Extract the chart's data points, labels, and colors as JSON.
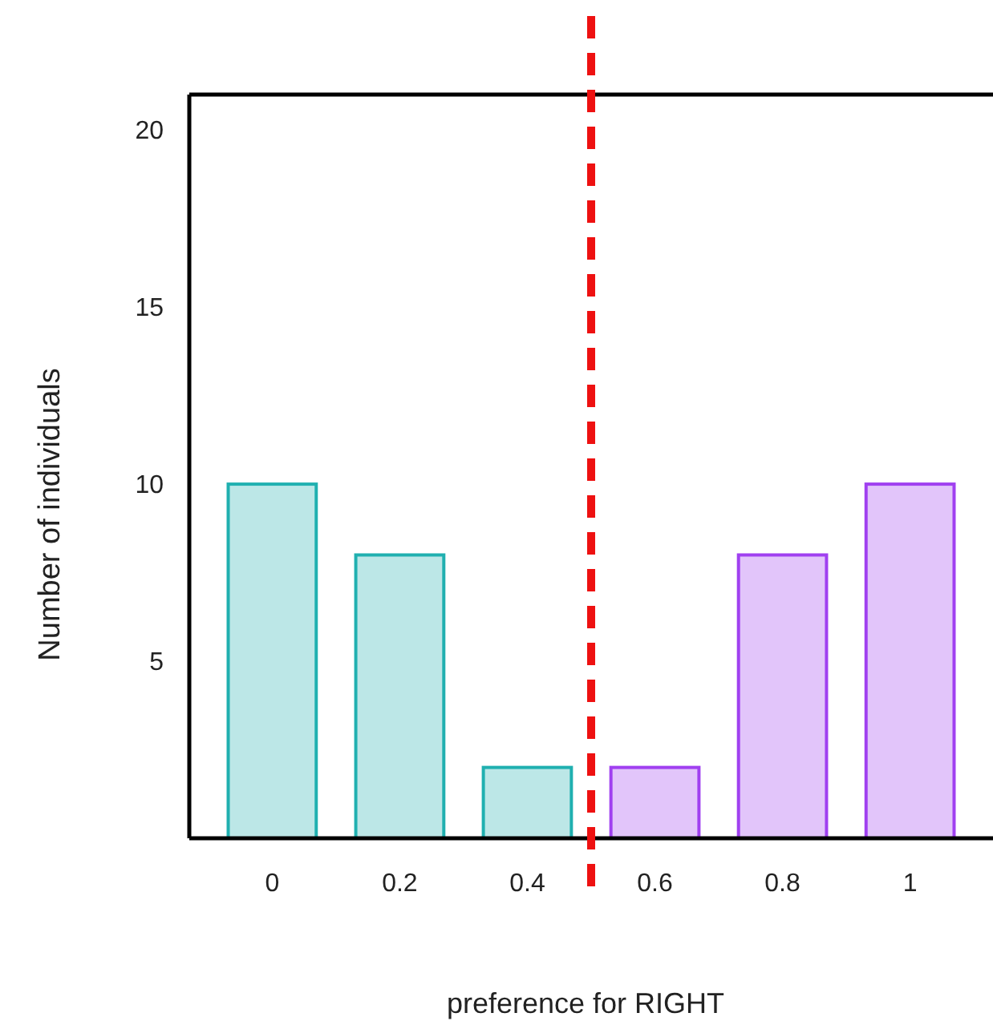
{
  "chart_data": {
    "type": "bar",
    "xlabel": "preference for RIGHT",
    "ylabel": "Number of individuals",
    "x": [
      0,
      0.2,
      0.4,
      0.6,
      0.8,
      1
    ],
    "values": [
      10,
      8,
      2,
      2,
      8,
      10
    ],
    "colors": [
      "#20b0b0",
      "#20b0b0",
      "#20b0b0",
      "#a040f0",
      "#a040f0",
      "#a040f0"
    ],
    "xlim": [
      -0.13,
      1.13
    ],
    "xticks": [
      0,
      0.2,
      0.4,
      0.6,
      0.8,
      1
    ],
    "ylim": [
      0,
      21
    ],
    "yticks": [
      5,
      10,
      15,
      20
    ],
    "grid": false,
    "ref_lines": [
      {
        "axis": "x",
        "value": 0.5,
        "color": "#ee1111",
        "line_style": "dashed"
      }
    ]
  }
}
